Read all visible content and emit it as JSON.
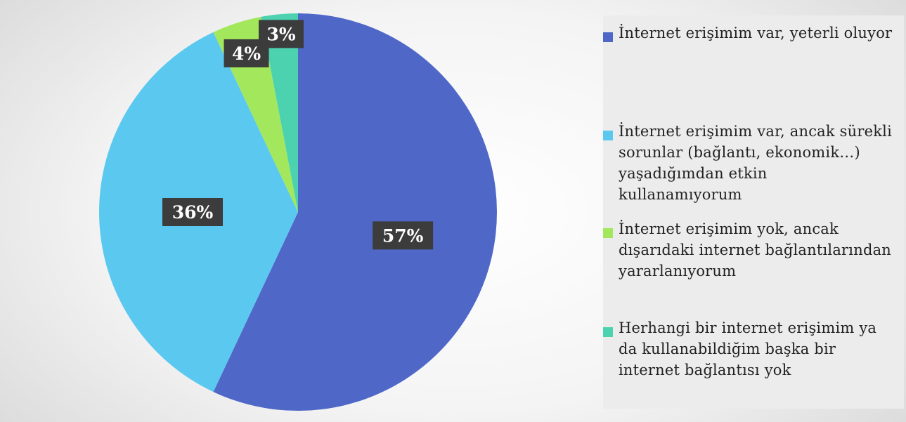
{
  "chart_data": {
    "type": "pie",
    "unit": "%",
    "slices": [
      {
        "label": "İnternet erişimim var, yeterli oluyor",
        "value": 57,
        "data_label": "57%",
        "color": "#4f68c8"
      },
      {
        "label": "İnternet erişimim var, ancak sürekli sorunlar (bağlantı, ekonomik…) yaşadığımdan etkin kullanamıyorum",
        "value": 36,
        "data_label": "36%",
        "color": "#5bc8f0"
      },
      {
        "label": "İnternet erişimim yok, ancak dışarıdaki internet bağlantılarından yararlanıyorum",
        "value": 4,
        "data_label": "4%",
        "color": "#a3e85c"
      },
      {
        "label": "Herhangi bir internet erişimim ya da kullanabildiğim başka bir internet bağlantısı yok",
        "value": 3,
        "data_label": "3%",
        "color": "#4dd2b0"
      }
    ],
    "start_angle_deg": 0,
    "direction": "clockwise",
    "legend_position": "right",
    "data_label_style": {
      "background": "#3c3c3c",
      "text_color": "#ffffff"
    }
  }
}
